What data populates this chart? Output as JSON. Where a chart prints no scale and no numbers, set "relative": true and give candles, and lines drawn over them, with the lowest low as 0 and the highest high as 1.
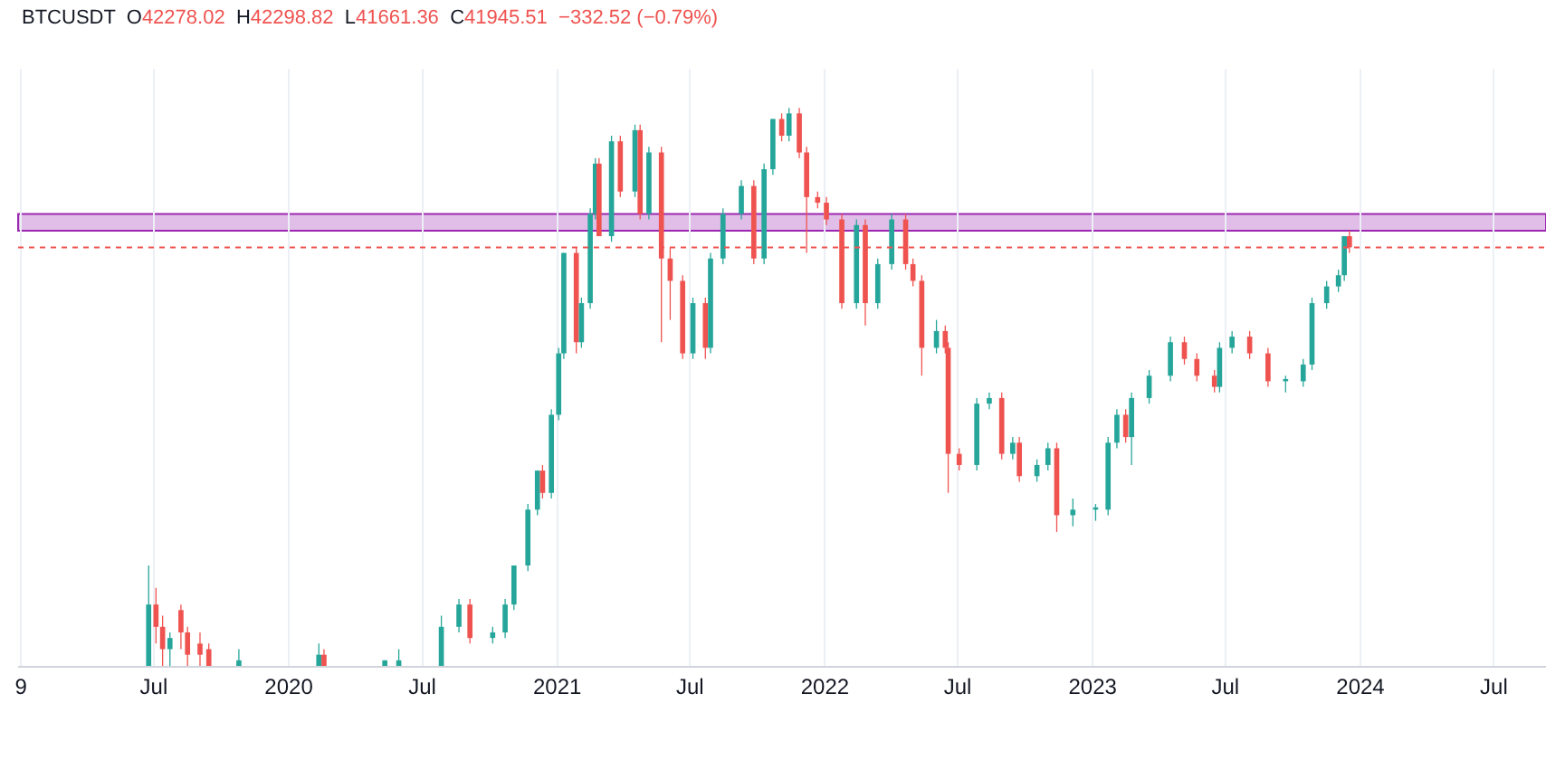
{
  "chart_data": {
    "type": "candlestick",
    "title": "BTCUSDT",
    "annotations": [
      "O42278.02",
      "H42298.82",
      "L41661.36",
      "C41945.51",
      "−332.52 (−0.79%)"
    ],
    "relative": true,
    "colors": [
      "#26a69a",
      "#ef5350",
      "#ef5350",
      "#26a69a",
      "#ef5350",
      "#ef5350",
      "#ef5350",
      "#ef5350",
      "#26a69a",
      "#26a69a",
      "#ef5350",
      "#26a69a",
      "#26a69a",
      "#26a69a",
      "#26a69a",
      "#ef5350",
      "#26a69a",
      "#26a69a",
      "#26a69a",
      "#26a69a",
      "#26a69a",
      "#ef5350",
      "#26a69a",
      "#26a69a",
      "#26a69a",
      "#ef5350",
      "#26a69a",
      "#26a69a",
      "#26a69a",
      "#ef5350",
      "#26a69a",
      "#ef5350",
      "#26a69a",
      "#ef5350",
      "#26a69a",
      "#ef5350",
      "#ef5350",
      "#ef5350",
      "#26a69a",
      "#ef5350",
      "#26a69a",
      "#26a69a",
      "#26a69a",
      "#ef5350",
      "#26a69a",
      "#26a69a",
      "#ef5350",
      "#26a69a",
      "#ef5350",
      "#ef5350",
      "#ef5350",
      "#ef5350",
      "#ef5350",
      "#26a69a",
      "#ef5350",
      "#26a69a",
      "#26a69a",
      "#ef5350",
      "#ef5350",
      "#ef5350",
      "#26a69a",
      "#ef5350",
      "#ef5350",
      "#ef5350",
      "#26a69a",
      "#26a69a",
      "#ef5350",
      "#26a69a",
      "#ef5350",
      "#26a69a",
      "#26a69a",
      "#ef5350",
      "#26a69a",
      "#26a69a",
      "#26a69a",
      "#26a69a",
      "#ef5350",
      "#26a69a",
      "#26a69a",
      "#26a69a",
      "#ef5350",
      "#ef5350",
      "#ef5350",
      "#26a69a",
      "#26a69a",
      "#ef5350",
      "#ef5350",
      "#26a69a",
      "#26a69a",
      "#26a69a",
      "#26a69a",
      "#26a69a",
      "#26a69a",
      "#ef5350"
    ],
    "grid": "x",
    "xlim": [
      "2018-12-28",
      "2024-09-10"
    ],
    "xticks": [
      {
        "value": "2019-01-01",
        "label": "9"
      },
      {
        "value": "2019-07-01",
        "label": "Jul"
      },
      {
        "value": "2020-01-01",
        "label": "2020"
      },
      {
        "value": "2020-07-01",
        "label": "Jul"
      },
      {
        "value": "2021-01-01",
        "label": "2021"
      },
      {
        "value": "2021-07-01",
        "label": "Jul"
      },
      {
        "value": "2022-01-01",
        "label": "2022"
      },
      {
        "value": "2022-07-01",
        "label": "Jul"
      },
      {
        "value": "2023-01-01",
        "label": "2023"
      },
      {
        "value": "2023-07-01",
        "label": "Jul"
      },
      {
        "value": "2024-01-01",
        "label": "2024"
      },
      {
        "value": "2024-07-01",
        "label": "Jul"
      }
    ],
    "ref_lines": [
      {
        "axis": "y",
        "value": 0.75,
        "color": "#ef5350",
        "line_style": "dotted"
      }
    ],
    "bands": [
      {
        "axis": "y",
        "from": 0.78,
        "to": 0.81,
        "color": "#e1bee7"
      }
    ],
    "x": [
      "2019-06-24",
      "2019-07-04",
      "2019-07-13",
      "2019-07-23",
      "2019-08-07",
      "2019-08-16",
      "2019-09-02",
      "2019-09-14",
      "2019-10-25",
      "2020-02-11",
      "2020-02-18",
      "2020-05-11",
      "2020-05-30",
      "2020-07-27",
      "2020-08-20",
      "2020-09-04",
      "2020-10-05",
      "2020-10-22",
      "2020-11-03",
      "2020-11-22",
      "2020-12-05",
      "2020-12-12",
      "2020-12-24",
      "2021-01-03",
      "2021-01-10",
      "2021-01-27",
      "2021-02-03",
      "2021-02-15",
      "2021-02-22",
      "2021-02-27",
      "2021-03-16",
      "2021-03-28",
      "2021-04-17",
      "2021-04-24",
      "2021-05-06",
      "2021-05-23",
      "2021-06-04",
      "2021-06-21",
      "2021-07-05",
      "2021-07-22",
      "2021-07-29",
      "2021-08-15",
      "2021-09-09",
      "2021-09-26",
      "2021-10-10",
      "2021-10-22",
      "2021-11-03",
      "2021-11-13",
      "2021-11-27",
      "2021-12-07",
      "2021-12-22",
      "2022-01-03",
      "2022-01-24",
      "2022-02-13",
      "2022-02-25",
      "2022-03-14",
      "2022-04-02",
      "2022-04-21",
      "2022-05-01",
      "2022-05-13",
      "2022-06-02",
      "2022-06-14",
      "2022-06-18",
      "2022-07-03",
      "2022-07-27",
      "2022-08-13",
      "2022-08-30",
      "2022-09-14",
      "2022-09-23",
      "2022-10-17",
      "2022-11-01",
      "2022-11-13",
      "2022-12-05",
      "2023-01-05",
      "2023-01-22",
      "2023-02-03",
      "2023-02-15",
      "2023-02-23",
      "2023-03-19",
      "2023-04-17",
      "2023-05-06",
      "2023-05-23",
      "2023-06-16",
      "2023-06-23",
      "2023-07-10",
      "2023-08-03",
      "2023-08-28",
      "2023-09-21",
      "2023-10-15",
      "2023-10-27",
      "2023-11-16",
      "2023-12-02",
      "2023-12-10",
      "2023-12-17"
    ],
    "ohlc": [
      [
        0,
        0.18,
        0,
        0.11
      ],
      [
        0.11,
        0.14,
        0.04,
        0.07
      ],
      [
        0.07,
        0.09,
        0,
        0.03
      ],
      [
        0.03,
        0.06,
        0,
        0.05
      ],
      [
        0.1,
        0.11,
        0.03,
        0.06
      ],
      [
        0.06,
        0.07,
        0,
        0.02
      ],
      [
        0.04,
        0.06,
        0,
        0.02
      ],
      [
        0.03,
        0.04,
        0,
        0
      ],
      [
        0,
        0.03,
        0,
        0.01
      ],
      [
        0,
        0.04,
        0,
        0.02
      ],
      [
        0.02,
        0.03,
        0,
        0
      ],
      [
        0,
        0.01,
        0,
        0.01
      ],
      [
        0,
        0.03,
        0,
        0.01
      ],
      [
        0,
        0.09,
        0,
        0.07
      ],
      [
        0.07,
        0.12,
        0.06,
        0.11
      ],
      [
        0.11,
        0.12,
        0.04,
        0.05
      ],
      [
        0.05,
        0.07,
        0.04,
        0.06
      ],
      [
        0.06,
        0.12,
        0.05,
        0.11
      ],
      [
        0.11,
        0.18,
        0.1,
        0.18
      ],
      [
        0.18,
        0.29,
        0.17,
        0.28
      ],
      [
        0.28,
        0.35,
        0.27,
        0.35
      ],
      [
        0.35,
        0.36,
        0.3,
        0.31
      ],
      [
        0.31,
        0.46,
        0.3,
        0.45
      ],
      [
        0.45,
        0.57,
        0.44,
        0.56
      ],
      [
        0.56,
        0.74,
        0.55,
        0.74
      ],
      [
        0.74,
        0.75,
        0.56,
        0.58
      ],
      [
        0.58,
        0.66,
        0.57,
        0.65
      ],
      [
        0.65,
        0.82,
        0.64,
        0.81
      ],
      [
        0.81,
        0.91,
        0.8,
        0.9
      ],
      [
        0.9,
        0.91,
        0.77,
        0.77
      ],
      [
        0.77,
        0.95,
        0.76,
        0.94
      ],
      [
        0.94,
        0.95,
        0.84,
        0.85
      ],
      [
        0.85,
        0.97,
        0.84,
        0.96
      ],
      [
        0.96,
        0.97,
        0.8,
        0.81
      ],
      [
        0.81,
        0.93,
        0.8,
        0.92
      ],
      [
        0.92,
        0.93,
        0.58,
        0.73
      ],
      [
        0.73,
        0.75,
        0.62,
        0.69
      ],
      [
        0.69,
        0.7,
        0.55,
        0.56
      ],
      [
        0.56,
        0.66,
        0.55,
        0.65
      ],
      [
        0.65,
        0.66,
        0.55,
        0.57
      ],
      [
        0.57,
        0.74,
        0.56,
        0.73
      ],
      [
        0.73,
        0.82,
        0.72,
        0.81
      ],
      [
        0.81,
        0.87,
        0.8,
        0.86
      ],
      [
        0.86,
        0.87,
        0.72,
        0.73
      ],
      [
        0.73,
        0.9,
        0.72,
        0.89
      ],
      [
        0.89,
        0.98,
        0.88,
        0.98
      ],
      [
        0.98,
        0.99,
        0.94,
        0.95
      ],
      [
        0.95,
        1,
        0.94,
        0.99
      ],
      [
        0.99,
        1,
        0.91,
        0.92
      ],
      [
        0.92,
        0.93,
        0.74,
        0.84
      ],
      [
        0.84,
        0.85,
        0.82,
        0.83
      ],
      [
        0.83,
        0.84,
        0.79,
        0.8
      ],
      [
        0.8,
        0.81,
        0.64,
        0.65
      ],
      [
        0.65,
        0.8,
        0.64,
        0.79
      ],
      [
        0.79,
        0.8,
        0.61,
        0.65
      ],
      [
        0.65,
        0.73,
        0.64,
        0.72
      ],
      [
        0.72,
        0.81,
        0.71,
        0.8
      ],
      [
        0.8,
        0.81,
        0.71,
        0.72
      ],
      [
        0.72,
        0.73,
        0.68,
        0.69
      ],
      [
        0.69,
        0.7,
        0.52,
        0.57
      ],
      [
        0.57,
        0.62,
        0.56,
        0.6
      ],
      [
        0.6,
        0.61,
        0.56,
        0.57
      ],
      [
        0.57,
        0.58,
        0.31,
        0.38
      ],
      [
        0.38,
        0.39,
        0.35,
        0.36
      ],
      [
        0.36,
        0.48,
        0.35,
        0.47
      ],
      [
        0.47,
        0.49,
        0.46,
        0.48
      ],
      [
        0.48,
        0.49,
        0.37,
        0.38
      ],
      [
        0.38,
        0.41,
        0.37,
        0.4
      ],
      [
        0.4,
        0.41,
        0.33,
        0.34
      ],
      [
        0.34,
        0.37,
        0.33,
        0.36
      ],
      [
        0.36,
        0.4,
        0.35,
        0.39
      ],
      [
        0.39,
        0.4,
        0.24,
        0.27
      ],
      [
        0.27,
        0.3,
        0.25,
        0.28
      ],
      [
        0.28,
        0.29,
        0.26,
        0.28
      ],
      [
        0.28,
        0.41,
        0.27,
        0.4
      ],
      [
        0.4,
        0.46,
        0.39,
        0.45
      ],
      [
        0.45,
        0.46,
        0.4,
        0.41
      ],
      [
        0.41,
        0.49,
        0.36,
        0.48
      ],
      [
        0.48,
        0.53,
        0.47,
        0.52
      ],
      [
        0.52,
        0.59,
        0.51,
        0.58
      ],
      [
        0.58,
        0.59,
        0.54,
        0.55
      ],
      [
        0.55,
        0.56,
        0.51,
        0.52
      ],
      [
        0.52,
        0.53,
        0.49,
        0.5
      ],
      [
        0.5,
        0.58,
        0.49,
        0.57
      ],
      [
        0.57,
        0.6,
        0.56,
        0.59
      ],
      [
        0.59,
        0.6,
        0.55,
        0.56
      ],
      [
        0.56,
        0.57,
        0.5,
        0.51
      ],
      [
        0.51,
        0.52,
        0.49,
        0.51
      ],
      [
        0.51,
        0.55,
        0.5,
        0.54
      ],
      [
        0.54,
        0.66,
        0.53,
        0.65
      ],
      [
        0.65,
        0.69,
        0.64,
        0.68
      ],
      [
        0.68,
        0.71,
        0.67,
        0.7
      ],
      [
        0.7,
        0.77,
        0.69,
        0.77
      ],
      [
        0.77,
        0.78,
        0.74,
        0.75
      ]
    ]
  }
}
